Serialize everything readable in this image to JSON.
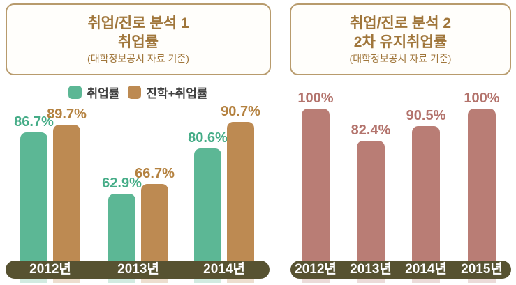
{
  "page": {
    "background": "#ffffff"
  },
  "style_colors": {
    "title_text": "#a0763b",
    "title_border": "#b89b6d",
    "legend_text": "#3f3f3f",
    "axis_band": "#575231",
    "axis_text": "#ffffff"
  },
  "chart_data": [
    {
      "type": "bar",
      "panel": "left",
      "title_line1": "취업/진로 분석 1",
      "title_line2": "취업률",
      "subtitle": "(대학정보공시 자료 기준)",
      "categories": [
        "2012년",
        "2013년",
        "2014년"
      ],
      "series": [
        {
          "name": "취업률",
          "color": "#5cb795",
          "label_color": "#45ac87",
          "values": [
            86.7,
            62.9,
            80.6
          ]
        },
        {
          "name": "진학+취업률",
          "color": "#bd8a52",
          "label_color": "#b4813f",
          "values": [
            89.7,
            66.7,
            90.7
          ]
        }
      ],
      "value_labels": [
        "86.7%",
        "89.7%",
        "62.9%",
        "66.7%",
        "80.6%",
        "90.7%"
      ],
      "value_suffix": "%",
      "ylim": [
        37,
        91
      ],
      "grid": false,
      "legend_position": "top",
      "axis_band_color": "#575231",
      "axis_text_color": "#ffffff"
    },
    {
      "type": "bar",
      "panel": "right",
      "title_line1": "취업/진로 분석 2",
      "title_line2": "2차 유지취업률",
      "subtitle": "(대학정보공시 자료 기준)",
      "categories": [
        "2012년",
        "2013년",
        "2014년",
        "2015년"
      ],
      "series": [
        {
          "name": "2차 유지취업률",
          "color": "#b97d75",
          "label_color": "#b3736c",
          "values": [
            100,
            82.4,
            90.5,
            100
          ]
        }
      ],
      "value_labels": [
        "100%",
        "82.4%",
        "90.5%",
        "100%"
      ],
      "value_suffix": "%",
      "ylim": [
        17,
        100
      ],
      "grid": false,
      "legend_position": "none",
      "axis_band_color": "#575231",
      "axis_text_color": "#ffffff"
    }
  ]
}
